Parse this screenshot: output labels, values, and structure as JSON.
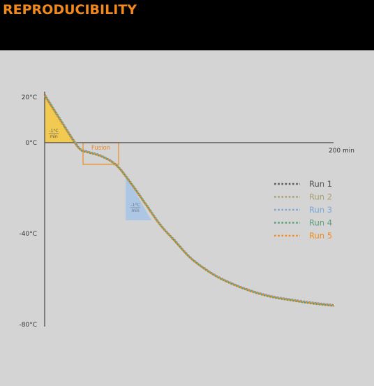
{
  "header": {
    "title": "REPRODUCIBILITY"
  },
  "colors": {
    "header_bg": "#000000",
    "title": "#f08a1e",
    "panel_bg": "#d4d4d4",
    "axis": "#444444",
    "cooling_triangle": "#f5c842",
    "fusion_box": "#f08a1e",
    "slope_triangle": "#a9c4e6"
  },
  "chart_data": {
    "type": "line",
    "y_ticks": [
      {
        "value": 20,
        "label": "20°C"
      },
      {
        "value": 0,
        "label": "0°C"
      },
      {
        "value": -40,
        "label": "-40°C"
      },
      {
        "value": -80,
        "label": "-80°C"
      }
    ],
    "x_end_label": "200 min",
    "xlim": [
      0,
      200
    ],
    "ylim": [
      -80,
      20
    ],
    "grid": false,
    "legend_position": "right",
    "annotations": [
      {
        "text_top": "-1°C",
        "text_bottom": "min",
        "near": "start"
      },
      {
        "text": "Fusion"
      },
      {
        "text_top": "-1°C",
        "text_bottom": "min",
        "near": "after-fusion"
      }
    ],
    "x": [
      0,
      10,
      20,
      25,
      30,
      40,
      50,
      60,
      70,
      80,
      90,
      100,
      110,
      120,
      130,
      140,
      150,
      160,
      170,
      180,
      190,
      200
    ],
    "series": [
      {
        "name": "Run 1",
        "color": "#58595b",
        "values": [
          21,
          11,
          1,
          -3,
          -4,
          -6,
          -10,
          -18,
          -27,
          -36,
          -43,
          -50,
          -55,
          -59,
          -62,
          -64.5,
          -66.5,
          -68,
          -69,
          -70,
          -70.8,
          -71.5
        ]
      },
      {
        "name": "Run 2",
        "color": "#a8a070",
        "values": [
          21,
          11,
          1,
          -3,
          -4,
          -6,
          -10,
          -18,
          -27,
          -36,
          -43,
          -50,
          -55,
          -59,
          -62,
          -64.5,
          -66.5,
          -68,
          -69,
          -70,
          -70.8,
          -71.5
        ]
      },
      {
        "name": "Run 3",
        "color": "#7aa7d6",
        "values": [
          21,
          11,
          1,
          -3,
          -4,
          -6,
          -10,
          -18,
          -27,
          -36,
          -43,
          -50,
          -55,
          -59,
          -62,
          -64.5,
          -66.5,
          -68,
          -69,
          -70,
          -70.8,
          -71.5
        ]
      },
      {
        "name": "Run 4",
        "color": "#5c9e7a",
        "values": [
          21,
          11,
          1,
          -3,
          -4,
          -6,
          -10,
          -18,
          -27,
          -36,
          -43,
          -50,
          -55,
          -59,
          -62,
          -64.5,
          -66.5,
          -68,
          -69,
          -70,
          -70.8,
          -71.5
        ]
      },
      {
        "name": "Run 5",
        "color": "#f08a1e",
        "values": [
          21,
          11,
          1,
          -3,
          -4,
          -6,
          -10,
          -18,
          -27,
          -36,
          -43,
          -50,
          -55,
          -59,
          -62,
          -64.5,
          -66.5,
          -68,
          -69,
          -70,
          -70.8,
          -71.5
        ]
      }
    ]
  }
}
